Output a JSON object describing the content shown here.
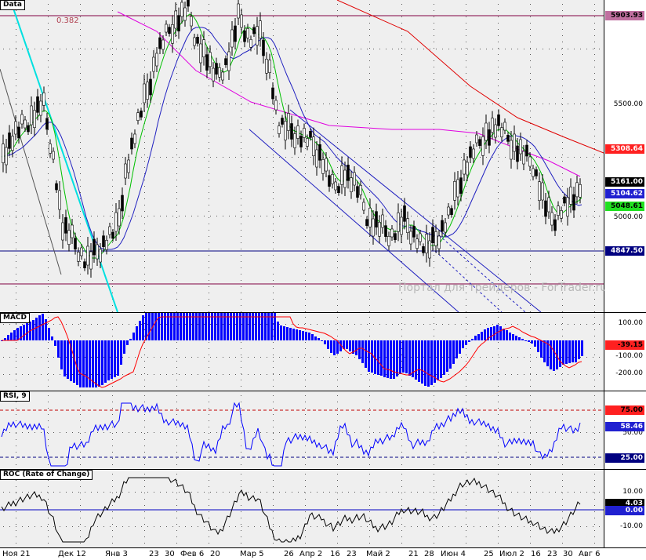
{
  "panes": {
    "main": {
      "label": "Data",
      "fib_label": "0.382",
      "watermark": "Портал для трейдеров - ForTrader.ru",
      "ticks": [
        "5500.00",
        "5000.00"
      ],
      "badges": [
        {
          "text": "5903.93",
          "bg": "#c070a0",
          "fg": "#000000"
        },
        {
          "text": "5308.64",
          "bg": "#ff2020",
          "fg": "#ffffff"
        },
        {
          "text": "5161.00",
          "bg": "#000000",
          "fg": "#ffffff"
        },
        {
          "text": "5104.62",
          "bg": "#2020d0",
          "fg": "#ffffff"
        },
        {
          "text": "5048.61",
          "bg": "#20e020",
          "fg": "#000000"
        },
        {
          "text": "4847.50",
          "bg": "#000080",
          "fg": "#ffffff"
        }
      ]
    },
    "macd": {
      "label": "MACD",
      "ticks": [
        "100.00",
        "-100.00",
        "-200.00"
      ],
      "badges": [
        {
          "text": "-39.15",
          "bg": "#ff2020",
          "fg": "#000000"
        }
      ]
    },
    "rsi": {
      "label": "RSI, 9",
      "ticks": [
        "50.00"
      ],
      "badges": [
        {
          "text": "75.00",
          "bg": "#ff2020",
          "fg": "#000000"
        },
        {
          "text": "58.46",
          "bg": "#2020d0",
          "fg": "#ffffff"
        },
        {
          "text": "25.00",
          "bg": "#000080",
          "fg": "#ffffff"
        }
      ]
    },
    "roc": {
      "label": "ROC (Rate of Change)",
      "ticks": [
        "10.00",
        "-10.00"
      ],
      "badges": [
        {
          "text": "4.03",
          "bg": "#000000",
          "fg": "#ffffff"
        },
        {
          "text": "0.00",
          "bg": "#2020d0",
          "fg": "#ffffff"
        }
      ]
    }
  },
  "x_labels": [
    "Ноя 21",
    "Дек 12",
    "Янв 3",
    "23",
    "30",
    "Фев 6",
    "20",
    "Мар 5",
    "26",
    "Апр 2",
    "16",
    "23",
    "Май 2",
    "21",
    "28",
    "Июн 4",
    "25",
    "Июл 2",
    "16",
    "23",
    "30",
    "Авг 6"
  ],
  "colors": {
    "candle": "#000000",
    "ma_fast": "#00c000",
    "ma_mid": "#2020c0",
    "ma_slow": "#e000e0",
    "ma_long": "#e00000",
    "trend_cyan": "#00e0e0",
    "channel": "#2020c0",
    "macd_hist": "#0000ff",
    "macd_signal": "#ff0000",
    "rsi_line": "#0000ff",
    "roc_line": "#000000"
  }
}
